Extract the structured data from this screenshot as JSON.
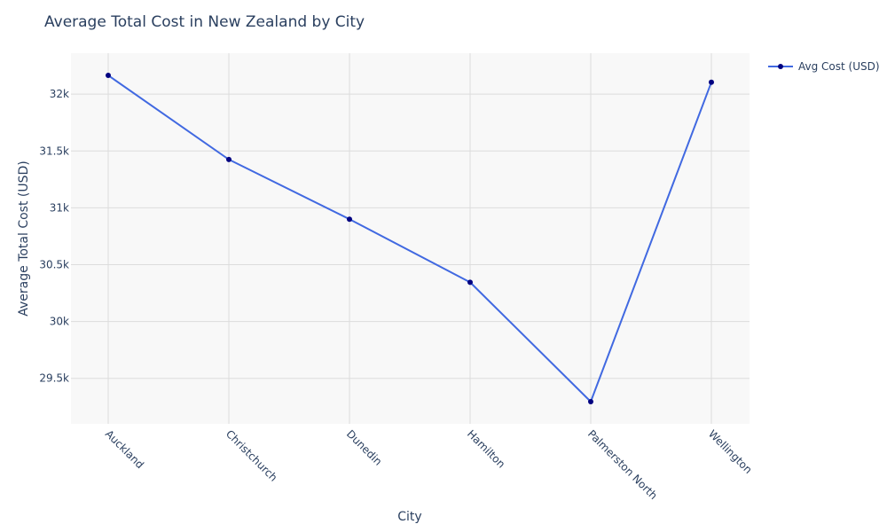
{
  "chart_data": {
    "type": "line",
    "title": "Average Total Cost in New Zealand by City",
    "xlabel": "City",
    "ylabel": "Average Total Cost (USD)",
    "categories": [
      "Auckland",
      "Christchurch",
      "Dunedin",
      "Hamilton",
      "Palmerston North",
      "Wellington"
    ],
    "series": [
      {
        "name": "Avg Cost (USD)",
        "values": [
          32165,
          31425,
          30900,
          30345,
          29295,
          32105
        ],
        "line_color": "#4169e1",
        "marker_color": "#000080"
      }
    ],
    "ylim": [
      29100,
      32360
    ],
    "yticks": [
      29500,
      30000,
      30500,
      31000,
      31500,
      32000
    ],
    "ytick_labels": [
      "29.5k",
      "30k",
      "30.5k",
      "31k",
      "31.5k",
      "32k"
    ],
    "grid": true,
    "legend_position": "top-right",
    "plot_background": "#f8f8f8",
    "grid_color": "#dcdcdc",
    "text_color": "#2a3f5f"
  }
}
